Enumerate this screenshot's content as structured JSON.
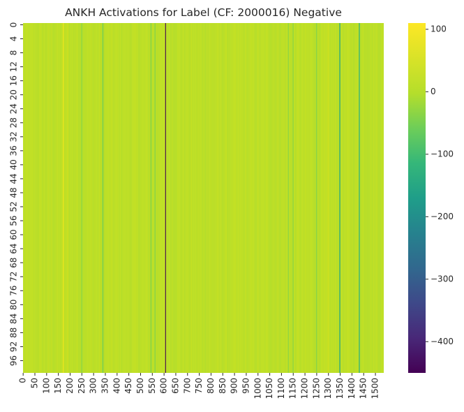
{
  "chart_data": {
    "type": "heatmap",
    "title": "ANKH Activations for Label (CF: 2000016) Negative",
    "xlabel": "",
    "ylabel": "",
    "rows": 100,
    "cols": 1536,
    "background_value": 8,
    "x_ticks": [
      0,
      50,
      100,
      150,
      200,
      250,
      300,
      350,
      400,
      450,
      500,
      550,
      600,
      650,
      700,
      750,
      800,
      850,
      900,
      950,
      1000,
      1050,
      1100,
      1150,
      1200,
      1250,
      1300,
      1350,
      1400,
      1450,
      1500
    ],
    "y_ticks": [
      0,
      4,
      8,
      12,
      16,
      20,
      24,
      28,
      32,
      36,
      40,
      44,
      48,
      52,
      56,
      60,
      64,
      68,
      72,
      76,
      80,
      84,
      88,
      92,
      96
    ],
    "colorbar": {
      "colormap": "viridis",
      "vmin": -450,
      "vmax": 110,
      "ticks": [
        100,
        0,
        -100,
        -200,
        -300,
        -400
      ]
    },
    "notable_columns": [
      {
        "col": 172,
        "value": 75
      },
      {
        "col": 190,
        "value": 30
      },
      {
        "col": 250,
        "value": -35
      },
      {
        "col": 340,
        "value": -60
      },
      {
        "col": 545,
        "value": -45
      },
      {
        "col": 562,
        "value": -40
      },
      {
        "col": 607,
        "value": -450
      },
      {
        "col": 1130,
        "value": -30
      },
      {
        "col": 1150,
        "value": -35
      },
      {
        "col": 1250,
        "value": -40
      },
      {
        "col": 1300,
        "value": 30
      },
      {
        "col": 1349,
        "value": -150
      },
      {
        "col": 1432,
        "value": -120
      }
    ]
  }
}
